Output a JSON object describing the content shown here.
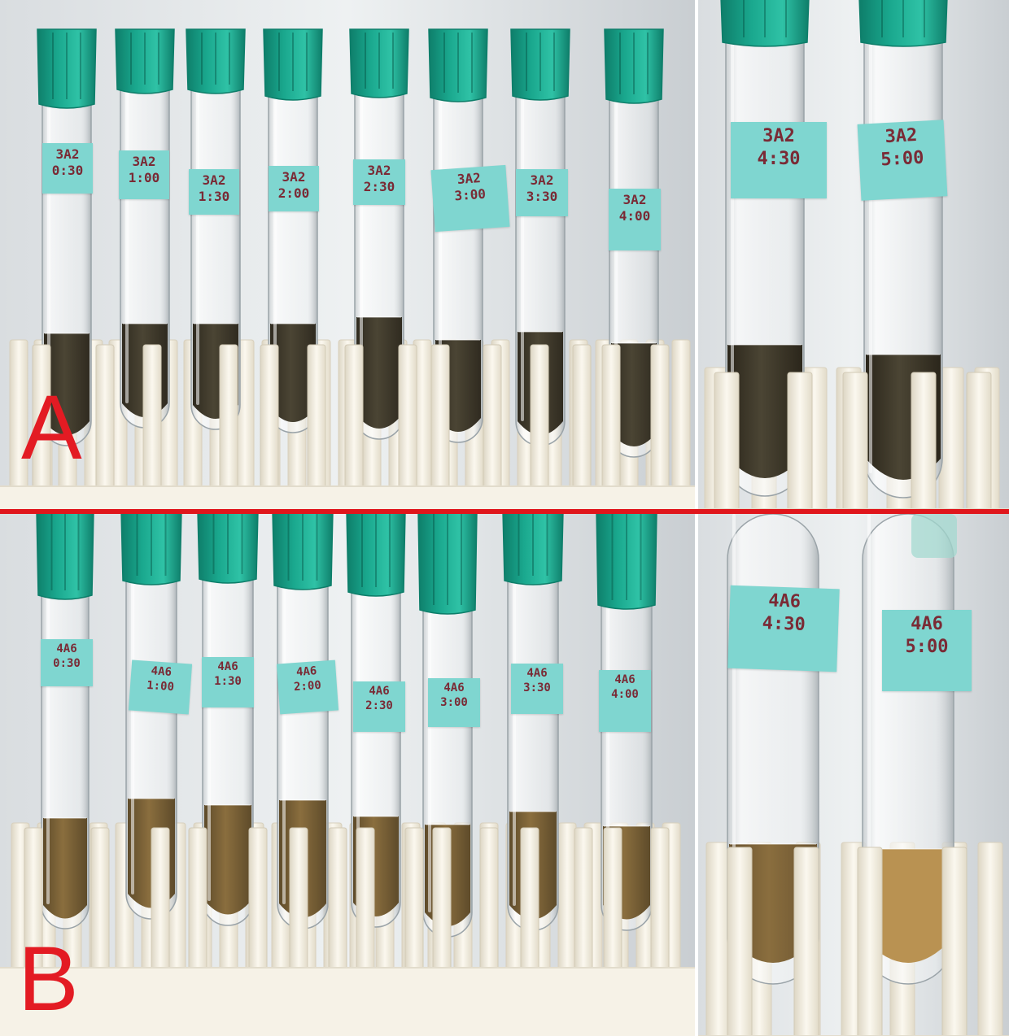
{
  "panels": {
    "a": {
      "letter": "A"
    },
    "b": {
      "letter": "B"
    }
  },
  "labels": {
    "a": [
      {
        "sample": "3A2",
        "time": "0:30"
      },
      {
        "sample": "3A2",
        "time": "1:00"
      },
      {
        "sample": "3A2",
        "time": "1:30"
      },
      {
        "sample": "3A2",
        "time": "2:00"
      },
      {
        "sample": "3A2",
        "time": "2:30"
      },
      {
        "sample": "3A2",
        "time": "3:00"
      },
      {
        "sample": "3A2",
        "time": "3:30"
      },
      {
        "sample": "3A2",
        "time": "4:00"
      }
    ],
    "a_zoom": [
      {
        "sample": "3A2",
        "time": "4:30"
      },
      {
        "sample": "3A2",
        "time": "5:00"
      }
    ],
    "b": [
      {
        "sample": "4A6",
        "time": "0:30"
      },
      {
        "sample": "4A6",
        "time": "1:00"
      },
      {
        "sample": "4A6",
        "time": "1:30"
      },
      {
        "sample": "4A6",
        "time": "2:00"
      },
      {
        "sample": "4A6",
        "time": "2:30"
      },
      {
        "sample": "4A6",
        "time": "3:00"
      },
      {
        "sample": "4A6",
        "time": "3:30"
      },
      {
        "sample": "4A6",
        "time": "4:00"
      }
    ],
    "b_zoom": [
      {
        "sample": "4A6",
        "time": "4:30"
      },
      {
        "sample": "4A6",
        "time": "5:00"
      }
    ]
  },
  "colors": {
    "cap": "#1aa88e",
    "cap_dark": "#0e7e6a",
    "tape": "#7fd6d0",
    "ink": "#7a2a35",
    "rack": "#f4efe2",
    "liquid_a": "#4b4534",
    "liquid_b": "#8a6e3e",
    "liquid_b_light": "#b99252",
    "divider": "#e0161c",
    "letter": "#e31b23"
  }
}
